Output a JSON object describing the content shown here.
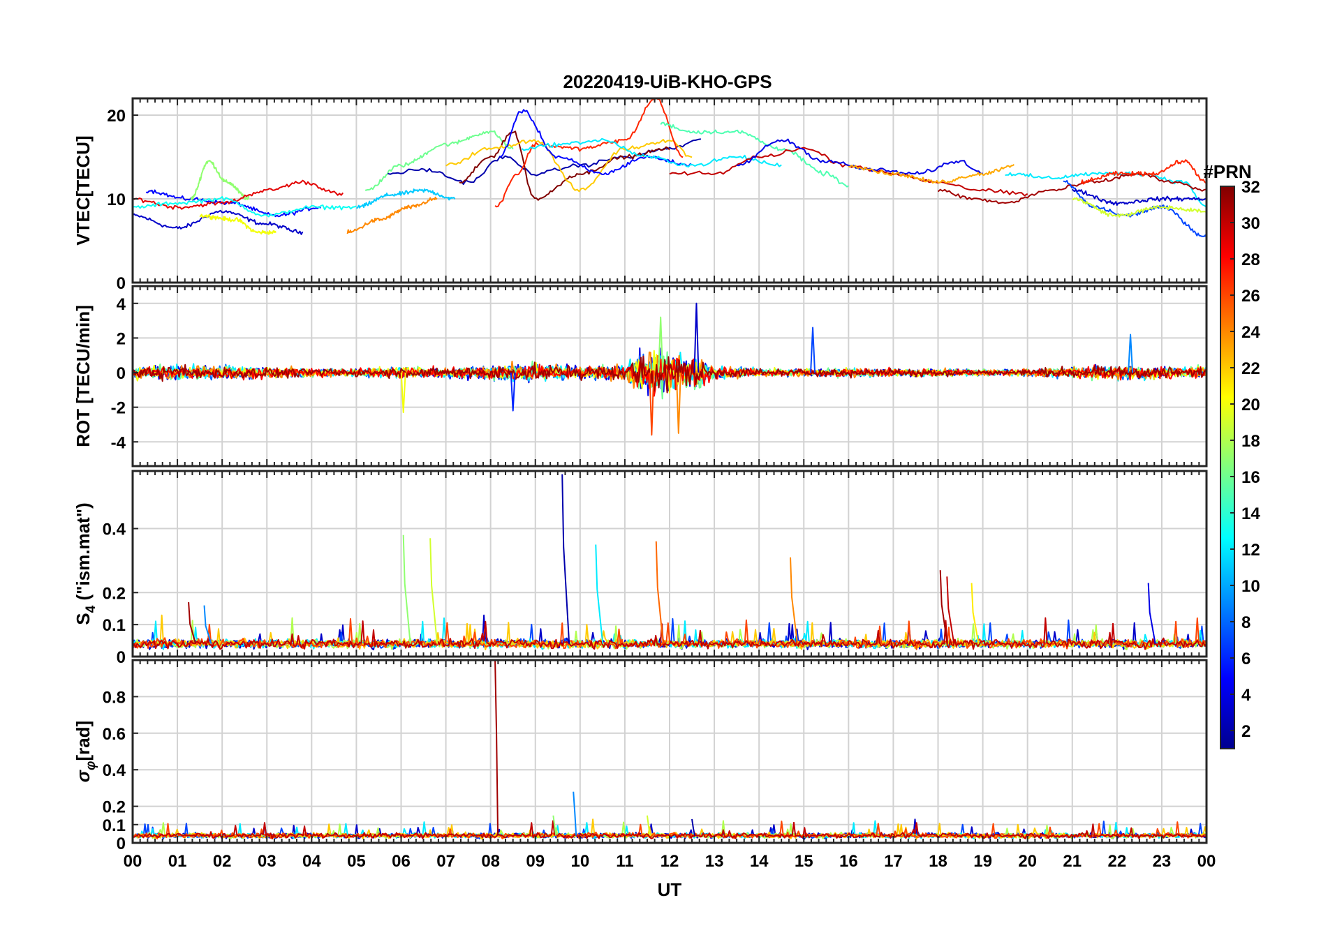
{
  "figure": {
    "title": "20220419-UiB-KHO-GPS"
  },
  "chart_data": [
    {
      "type": "line",
      "panel": "vtec",
      "ylabel": "VTEC[TECU]",
      "xlabel": "",
      "xlim": [
        0,
        24
      ],
      "ylim": [
        0,
        22
      ],
      "yticks": [
        0,
        10,
        20
      ],
      "x_tick_labels": [
        "00",
        "01",
        "02",
        "03",
        "04",
        "05",
        "06",
        "07",
        "08",
        "09",
        "10",
        "11",
        "12",
        "13",
        "14",
        "15",
        "16",
        "17",
        "18",
        "19",
        "20",
        "21",
        "22",
        "23",
        "00"
      ],
      "grid": true,
      "series_note_color_by": "PRN",
      "series": [
        {
          "prn": 3,
          "x": [
            0,
            1,
            2,
            3,
            3.8
          ],
          "values": [
            8,
            6.5,
            8.5,
            7,
            6
          ]
        },
        {
          "prn": 5,
          "x": [
            0.3,
            1.2,
            2.2,
            3.2,
            4.2
          ],
          "values": [
            11,
            10,
            9.5,
            8,
            9
          ]
        },
        {
          "prn": 20,
          "x": [
            1.5,
            2.3,
            2.8,
            3.2
          ],
          "values": [
            8,
            7.5,
            6,
            6
          ]
        },
        {
          "prn": 17,
          "x": [
            1.3,
            1.7,
            2.1,
            2.6
          ],
          "values": [
            10,
            14.5,
            12,
            10
          ]
        },
        {
          "prn": 29,
          "x": [
            0,
            1,
            2,
            3,
            3.8,
            4.7
          ],
          "values": [
            10,
            9,
            9.5,
            11,
            12,
            10.5
          ]
        },
        {
          "prn": 13,
          "x": [
            0,
            1,
            2,
            3,
            4,
            5
          ],
          "values": [
            9,
            9.5,
            10,
            8,
            9,
            9
          ]
        },
        {
          "prn": 24,
          "x": [
            4.8,
            5.5,
            6.2,
            6.8
          ],
          "values": [
            6,
            7.5,
            9,
            10
          ]
        },
        {
          "prn": 11,
          "x": [
            5,
            5.8,
            6.5,
            7.2
          ],
          "values": [
            9,
            10.5,
            11,
            10
          ]
        },
        {
          "prn": 16,
          "x": [
            5.2,
            6,
            7,
            8,
            8.5
          ],
          "values": [
            11,
            14,
            16.5,
            18,
            16
          ]
        },
        {
          "prn": 2,
          "x": [
            5.7,
            6.5,
            7.5,
            8.3,
            9,
            10,
            11,
            12,
            12.7
          ],
          "values": [
            13,
            13.5,
            12,
            15,
            13,
            14,
            15,
            16,
            17
          ]
        },
        {
          "prn": 32,
          "x": [
            7.3,
            8,
            8.5,
            9,
            10,
            11,
            12
          ],
          "values": [
            12,
            15,
            18,
            10,
            13,
            15,
            16
          ]
        },
        {
          "prn": 22,
          "x": [
            7,
            8,
            9,
            10,
            11,
            12,
            12.5
          ],
          "values": [
            14,
            16,
            17,
            11,
            16,
            17,
            15
          ]
        },
        {
          "prn": 27,
          "x": [
            8.1,
            8.6,
            9,
            10,
            11,
            11.7,
            12.3
          ],
          "values": [
            9,
            13,
            16.5,
            16,
            17,
            22,
            15
          ]
        },
        {
          "prn": 5,
          "x": [
            8.2,
            8.7,
            9.5,
            10.5,
            11.5,
            12.5
          ],
          "values": [
            15,
            20.5,
            15,
            13,
            15,
            14
          ]
        },
        {
          "prn": 12,
          "x": [
            8.7,
            9.5,
            10.5,
            11.5,
            12.5,
            13.5,
            14.5
          ],
          "values": [
            16,
            16.5,
            17,
            15,
            14,
            15,
            14
          ]
        },
        {
          "prn": 15,
          "x": [
            11.8,
            12.5,
            13.5,
            14.5,
            15.5,
            16
          ],
          "values": [
            19,
            18,
            18,
            16,
            13,
            11.5
          ]
        },
        {
          "prn": 30,
          "x": [
            12,
            13,
            14,
            15,
            16,
            17,
            18,
            19,
            20
          ],
          "values": [
            13,
            13,
            15,
            16,
            14,
            13,
            12,
            11,
            10.5
          ]
        },
        {
          "prn": 4,
          "x": [
            13.5,
            14.5,
            15.5,
            16.5,
            17.5,
            18.5,
            19
          ],
          "values": [
            14,
            17,
            14.5,
            13.5,
            13,
            14.5,
            13
          ]
        },
        {
          "prn": 23,
          "x": [
            16,
            17,
            18,
            19,
            19.7
          ],
          "values": [
            14,
            13,
            12,
            13,
            14
          ]
        },
        {
          "prn": 12,
          "x": [
            19.5,
            20.5,
            21.5,
            22.5,
            23.5,
            24
          ],
          "values": [
            13,
            12.5,
            13,
            13,
            12,
            9
          ]
        },
        {
          "prn": 31,
          "x": [
            18,
            18.8,
            19.5,
            20.5,
            21.5,
            22.5,
            23.2,
            24
          ],
          "values": [
            11,
            10,
            9.5,
            11,
            12,
            13,
            12,
            11
          ]
        },
        {
          "prn": 27,
          "x": [
            21.2,
            22,
            22.8,
            23.5,
            24
          ],
          "values": [
            12,
            13,
            13,
            14.5,
            12
          ]
        },
        {
          "prn": 7,
          "x": [
            20.8,
            21.5,
            22.2,
            23,
            24
          ],
          "values": [
            12,
            9,
            8,
            9,
            5.5
          ]
        },
        {
          "prn": 3,
          "x": [
            21,
            22,
            23,
            24
          ],
          "values": [
            11,
            9.5,
            10,
            10
          ]
        },
        {
          "prn": 19,
          "x": [
            21,
            22,
            23,
            24
          ],
          "values": [
            10,
            8,
            9,
            8.5
          ]
        }
      ]
    },
    {
      "type": "line",
      "panel": "rot",
      "ylabel": "ROT [TECU/min]",
      "xlabel": "",
      "xlim": [
        0,
        24
      ],
      "ylim": [
        -5.4,
        5
      ],
      "yticks": [
        -4,
        -2,
        0,
        2,
        4
      ],
      "grid": true,
      "noise_envelope": {
        "x": [
          0,
          1,
          2,
          3,
          4,
          5,
          6,
          7,
          8,
          9,
          10,
          11,
          11.6,
          12,
          12.6,
          13,
          14,
          15,
          16,
          17,
          18,
          19,
          20,
          21,
          22,
          23,
          24
        ],
        "amplitude": [
          0.5,
          0.7,
          0.6,
          0.5,
          0.4,
          0.35,
          0.5,
          0.45,
          0.7,
          0.8,
          0.6,
          0.7,
          2.5,
          1.8,
          1.5,
          0.6,
          0.35,
          0.35,
          0.4,
          0.35,
          0.35,
          0.3,
          0.35,
          0.5,
          0.6,
          0.6,
          0.55
        ]
      },
      "spikes": [
        {
          "x": 12.6,
          "value": 4.0
        },
        {
          "x": 11.6,
          "value": -3.6
        },
        {
          "x": 11.8,
          "value": 3.2
        },
        {
          "x": 12.2,
          "value": -3.5
        },
        {
          "x": 6.05,
          "value": -2.3
        },
        {
          "x": 8.5,
          "value": -2.2
        },
        {
          "x": 15.2,
          "value": 2.6
        },
        {
          "x": 22.3,
          "value": 2.2
        }
      ]
    },
    {
      "type": "line",
      "panel": "s4",
      "ylabel": "S4 (\"ism.mat\")",
      "ylabel_main": "S",
      "ylabel_sub": "4",
      "ylabel_rest": " (\"ism.mat\")",
      "xlabel": "",
      "xlim": [
        0,
        24
      ],
      "ylim": [
        0,
        0.58
      ],
      "yticks": [
        0,
        0.1,
        0.2,
        0.4
      ],
      "ytick_labels": [
        "0",
        "0.1",
        "0.2",
        "0.4"
      ],
      "grid": true,
      "baseline": 0.04,
      "spikes": [
        {
          "x": 1.25,
          "value": 0.17
        },
        {
          "x": 1.6,
          "value": 0.16
        },
        {
          "x": 6.05,
          "value": 0.38
        },
        {
          "x": 6.65,
          "value": 0.37
        },
        {
          "x": 9.6,
          "value": 0.57
        },
        {
          "x": 10.35,
          "value": 0.35
        },
        {
          "x": 11.7,
          "value": 0.36
        },
        {
          "x": 14.7,
          "value": 0.31
        },
        {
          "x": 18.05,
          "value": 0.27
        },
        {
          "x": 18.2,
          "value": 0.25
        },
        {
          "x": 18.75,
          "value": 0.23
        },
        {
          "x": 22.7,
          "value": 0.23
        }
      ]
    },
    {
      "type": "line",
      "panel": "sigma_phi",
      "ylabel": "σφ[rad]",
      "ylabel_main": "σ",
      "ylabel_sub": "φ",
      "ylabel_rest": "[rad]",
      "xlabel": "UT",
      "xlim": [
        0,
        24
      ],
      "ylim": [
        0,
        1
      ],
      "yticks": [
        0,
        0.1,
        0.2,
        0.4,
        0.6,
        0.8
      ],
      "ytick_labels": [
        "0",
        "0.1",
        "0.2",
        "0.4",
        "0.6",
        "0.8"
      ],
      "grid": true,
      "baseline": 0.04,
      "spikes": [
        {
          "x": 8.1,
          "value": 1.0
        },
        {
          "x": 9.85,
          "value": 0.28
        },
        {
          "x": 9.4,
          "value": 0.15
        },
        {
          "x": 11.5,
          "value": 0.15
        },
        {
          "x": 12.5,
          "value": 0.13
        }
      ]
    }
  ],
  "colorbar": {
    "title": "#PRN",
    "range": [
      1,
      32
    ],
    "ticks": [
      "2",
      "4",
      "6",
      "8",
      "10",
      "12",
      "14",
      "16",
      "18",
      "20",
      "22",
      "24",
      "26",
      "28",
      "30",
      "32"
    ],
    "colormap": "jet",
    "colormap_stops": [
      "#00008f",
      "#0000ff",
      "#0080ff",
      "#00ffff",
      "#80ff80",
      "#ffff00",
      "#ff8000",
      "#ff0000",
      "#800000"
    ]
  }
}
